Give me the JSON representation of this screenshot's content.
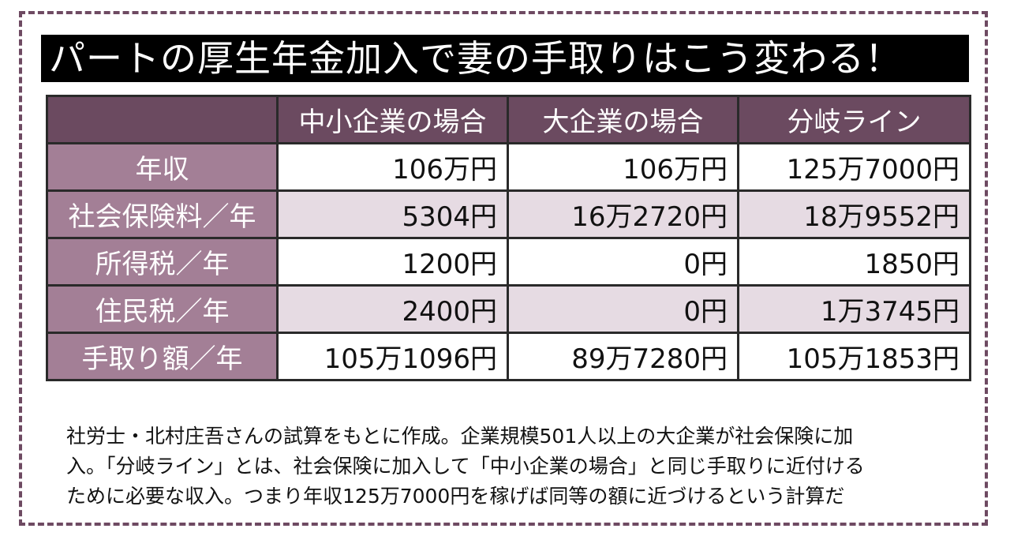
{
  "title": "パートの厚生年金加入で妻の手取りはこう変わる！",
  "table": {
    "headers": [
      "中小企業の場合",
      "大企業の場合",
      "分岐ライン"
    ],
    "rows": [
      {
        "label": "年収",
        "values": [
          "106万円",
          "106万円",
          "125万7000円"
        ]
      },
      {
        "label": "社会保険料／年",
        "values": [
          "5304円",
          "16万2720円",
          "18万9552円"
        ]
      },
      {
        "label": "所得税／年",
        "values": [
          "1200円",
          "0円",
          "1850円"
        ]
      },
      {
        "label": "住民税／年",
        "values": [
          "2400円",
          "0円",
          "1万3745円"
        ]
      },
      {
        "label": "手取り額／年",
        "values": [
          "105万1096円",
          "89万7280円",
          "105万1853円"
        ]
      }
    ]
  },
  "note": {
    "lines": [
      "社労士・北村庄吾さんの試算をもとに作成。企業規模501人以上の大企業が社会保険に加",
      "入。「分岐ライン」とは、社会保険に加入して「中小企業の場合」と同じ手取りに近付ける",
      "ために必要な収入。つまり年収125万7000円を稼げば同等の額に近づけるという計算だ"
    ]
  },
  "colors": {
    "header_bg": "#6b4a60",
    "label_bg": "#a37f96",
    "tint_row_bg": "#e6dbe3",
    "frame": "#6e4a62"
  }
}
